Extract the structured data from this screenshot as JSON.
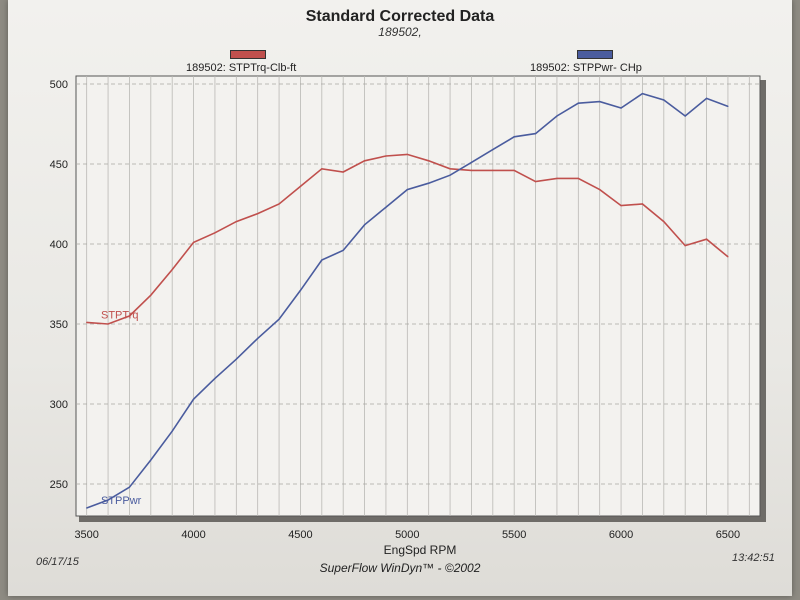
{
  "header": {
    "title": "Standard Corrected Data",
    "subtitle": "189502,"
  },
  "legend": {
    "torque": "189502: STPTrq-Clb-ft",
    "power": "189502: STPPwr- CHp"
  },
  "footer": {
    "date": "06/17/15",
    "time": "13:42:51",
    "credit": "SuperFlow WinDyn™ - ©2002"
  },
  "colors": {
    "torque": "#c0504d",
    "power": "#4a5c9e"
  },
  "chart_data": {
    "type": "line",
    "title": "Standard Corrected Data",
    "subtitle": "189502,",
    "xlabel": "EngSpd  RPM",
    "ylabel": "",
    "xlim": [
      3450,
      6650
    ],
    "ylim": [
      230,
      505
    ],
    "x_ticks": [
      3500,
      4000,
      4500,
      5000,
      5500,
      6000,
      6500
    ],
    "y_ticks": [
      250,
      300,
      350,
      400,
      450,
      500
    ],
    "grid": true,
    "legend_position": "top",
    "series": [
      {
        "name": "189502: STPTrq-Clb-ft",
        "label": "STPTrq",
        "color": "#c0504d",
        "x": [
          3500,
          3600,
          3700,
          3800,
          3900,
          4000,
          4100,
          4200,
          4300,
          4400,
          4500,
          4600,
          4700,
          4800,
          4900,
          5000,
          5100,
          5200,
          5300,
          5400,
          5500,
          5600,
          5700,
          5800,
          5900,
          6000,
          6100,
          6200,
          6300,
          6400,
          6500
        ],
        "values": [
          351,
          350,
          355,
          368,
          384,
          401,
          407,
          414,
          419,
          425,
          436,
          447,
          445,
          452,
          455,
          456,
          452,
          447,
          446,
          446,
          446,
          439,
          441,
          441,
          434,
          424,
          425,
          414,
          399,
          403,
          392
        ]
      },
      {
        "name": "189502: STPPwr- CHp",
        "label": "STPPwr",
        "color": "#4a5c9e",
        "x": [
          3500,
          3600,
          3700,
          3800,
          3900,
          4000,
          4100,
          4200,
          4300,
          4400,
          4500,
          4600,
          4700,
          4800,
          4900,
          5000,
          5100,
          5200,
          5300,
          5400,
          5500,
          5600,
          5700,
          5800,
          5900,
          6000,
          6100,
          6200,
          6300,
          6400,
          6500
        ],
        "values": [
          235,
          240,
          248,
          265,
          283,
          303,
          316,
          328,
          341,
          353,
          371,
          390,
          396,
          412,
          423,
          434,
          438,
          443,
          451,
          459,
          467,
          469,
          480,
          488,
          489,
          485,
          494,
          490,
          480,
          491,
          486
        ]
      }
    ]
  }
}
